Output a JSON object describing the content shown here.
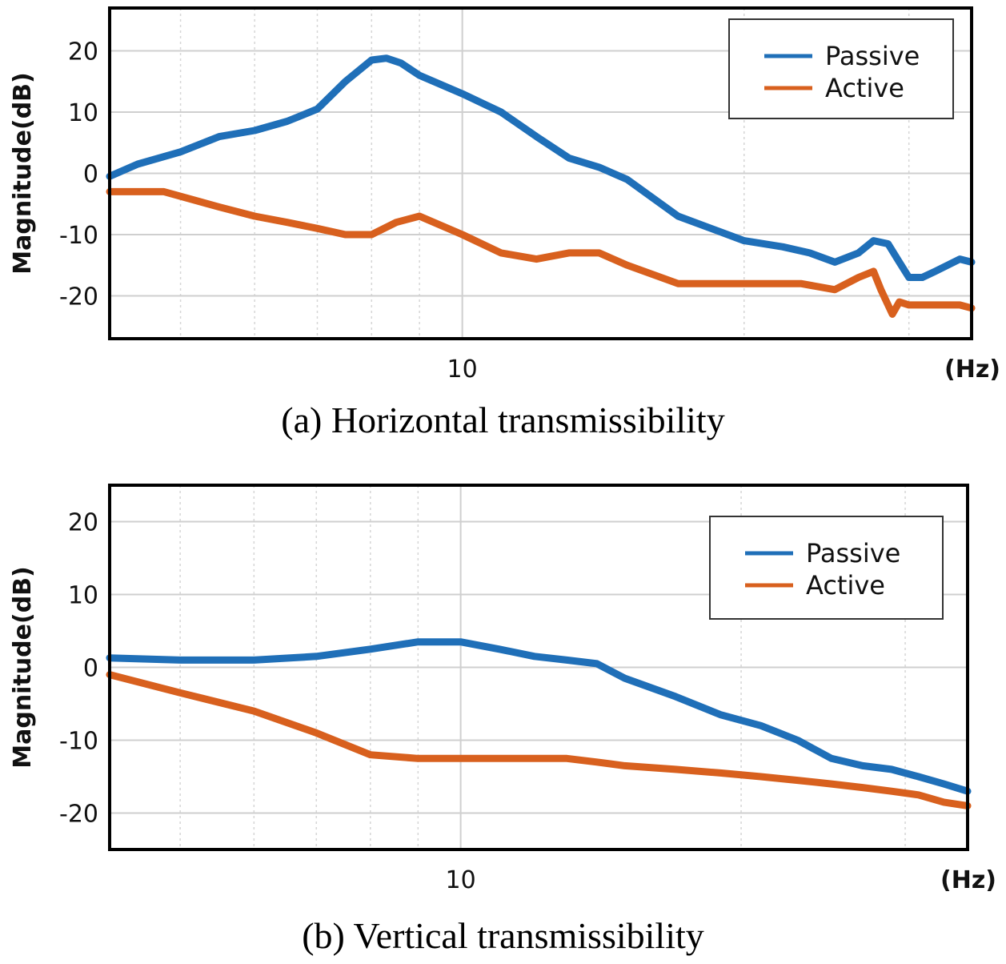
{
  "chart_data": [
    {
      "type": "line",
      "caption": "(a) Horizontal transmissibility",
      "ylabel": "Magnitude(dB)",
      "xlabel": "(Hz)",
      "xscale": "log",
      "xlim": [
        4.2,
        35
      ],
      "ylim": [
        -27,
        27
      ],
      "yticks": [
        20,
        10,
        0,
        -10,
        -20
      ],
      "ytick_labels": [
        "20",
        "10",
        "0",
        "-10",
        "-20"
      ],
      "xticks": [
        10
      ],
      "xtick_labels": [
        "10"
      ],
      "grid": true,
      "legend_position": "top-right",
      "series": [
        {
          "name": "Passive",
          "color": "#1f6fb8",
          "x": [
            4.2,
            4.5,
            5,
            5.5,
            6,
            6.5,
            7,
            7.5,
            8,
            8.3,
            8.6,
            9,
            10,
            11,
            12,
            13,
            14,
            15,
            17,
            20,
            22,
            23.5,
            25,
            26.5,
            27.5,
            28.5,
            29.3,
            30,
            31,
            32,
            34,
            35
          ],
          "y": [
            -0.5,
            1.5,
            3.5,
            6,
            7,
            8.5,
            10.5,
            15,
            18.5,
            18.8,
            18,
            16,
            13,
            10,
            6,
            2.5,
            1,
            -1,
            -7,
            -11,
            -12,
            -13,
            -14.5,
            -13,
            -11,
            -11.5,
            -14.5,
            -17,
            -17,
            -16,
            -14,
            -14.5
          ]
        },
        {
          "name": "Active",
          "color": "#d8601e",
          "x": [
            4.2,
            4.8,
            5.5,
            6,
            6.5,
            7,
            7.5,
            8,
            8.5,
            9,
            10,
            11,
            12,
            13,
            14,
            15,
            17,
            19,
            21,
            23,
            25,
            26.5,
            27.5,
            28,
            28.8,
            29.3,
            30,
            31,
            32,
            34,
            35
          ],
          "y": [
            -3,
            -3,
            -5.5,
            -7,
            -8,
            -9,
            -10,
            -10,
            -8,
            -7,
            -10,
            -13,
            -14,
            -13,
            -13,
            -15,
            -18,
            -18,
            -18,
            -18,
            -19,
            -17,
            -16,
            -19,
            -23,
            -21,
            -21.5,
            -21.5,
            -21.5,
            -21.5,
            -22
          ]
        }
      ]
    },
    {
      "type": "line",
      "caption": "(b) Vertical transmissibility",
      "ylabel": "Magnitude(dB)",
      "xlabel": "(Hz)",
      "xscale": "log",
      "xlim": [
        4.2,
        35
      ],
      "ylim": [
        -25,
        25
      ],
      "yticks": [
        20,
        10,
        0,
        -10,
        -20
      ],
      "ytick_labels": [
        "20",
        "10",
        "0",
        "-10",
        "-20"
      ],
      "xticks": [
        10
      ],
      "xtick_labels": [
        "10"
      ],
      "grid": true,
      "legend_position": "top-right",
      "series": [
        {
          "name": "Passive",
          "color": "#1f6fb8",
          "x": [
            4.2,
            5,
            6,
            7,
            8,
            9,
            10,
            11,
            12,
            13,
            14,
            15,
            17,
            19,
            21,
            23,
            25,
            27,
            29,
            31,
            33,
            35
          ],
          "y": [
            1.3,
            1,
            1,
            1.5,
            2.5,
            3.5,
            3.5,
            2.5,
            1.5,
            1,
            0.5,
            -1.5,
            -4,
            -6.5,
            -8,
            -10,
            -12.5,
            -13.5,
            -14,
            -15,
            -16,
            -17
          ]
        },
        {
          "name": "Active",
          "color": "#d8601e",
          "x": [
            4.2,
            5,
            6,
            7,
            8,
            9,
            10,
            11,
            12,
            13,
            14,
            15,
            17,
            19,
            21,
            23,
            25,
            27,
            29,
            31,
            33,
            35
          ],
          "y": [
            -1,
            -3.5,
            -6,
            -9,
            -12,
            -12.5,
            -12.5,
            -12.5,
            -12.5,
            -12.5,
            -13,
            -13.5,
            -14,
            -14.5,
            -15,
            -15.5,
            -16,
            -16.5,
            -17,
            -17.5,
            -18.5,
            -19
          ]
        }
      ]
    }
  ]
}
